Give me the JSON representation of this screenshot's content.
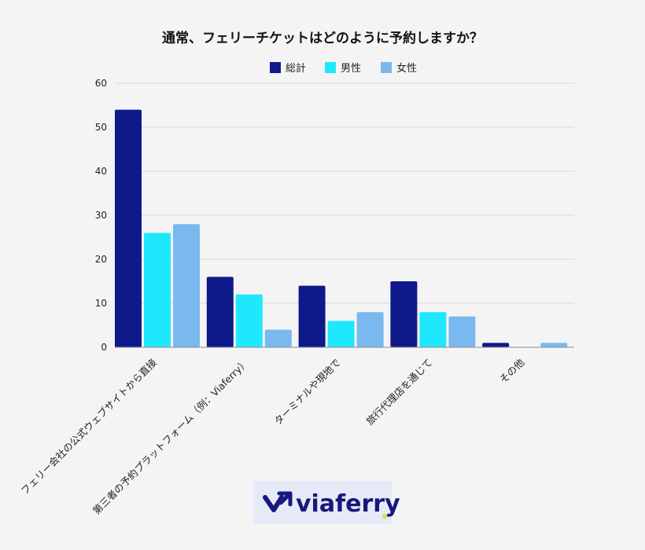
{
  "chart_data": {
    "type": "bar",
    "title": "通常、フェリーチケットはどのように予約しますか？",
    "categories": [
      "フェリー会社の公式ウェブサイトから直接",
      "第三者の予約プラットフォーム（例：Viaferry）",
      "ターミナルや現地で",
      "旅行代理店を通じて",
      "その他"
    ],
    "series": [
      {
        "name": "総計",
        "values": [
          54,
          16,
          14,
          15,
          1
        ]
      },
      {
        "name": "男性",
        "values": [
          26,
          12,
          6,
          8,
          0
        ]
      },
      {
        "name": "女性",
        "values": [
          28,
          4,
          8,
          7,
          1
        ]
      }
    ],
    "ylim": [
      0,
      60
    ],
    "yticks": [
      0,
      10,
      20,
      30,
      40,
      50,
      60
    ],
    "grid": true,
    "legend_position": "top-center",
    "colors": [
      "#0f1a8a",
      "#1fe8fd",
      "#7ab8f0"
    ]
  },
  "logo": {
    "text": "viaferry",
    "dot_color": "#d5e82b",
    "text_color": "#16187a",
    "background": "#e6e9f8"
  }
}
